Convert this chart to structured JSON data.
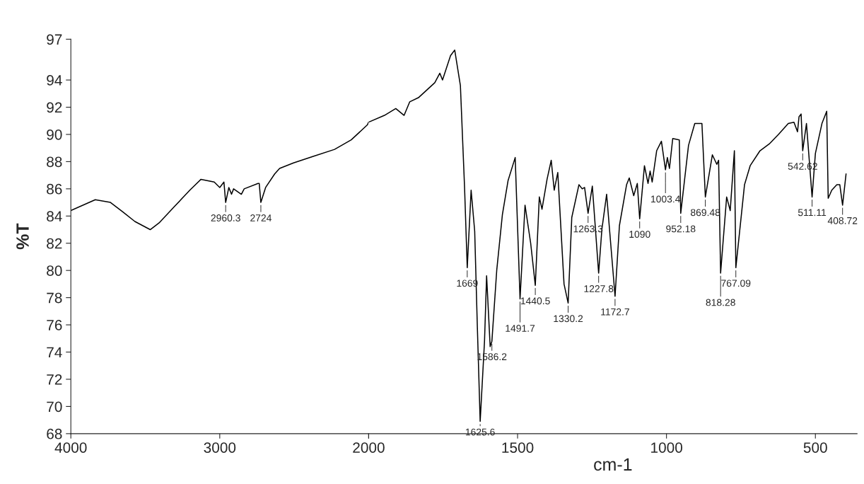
{
  "chart_data": [
    {
      "type": "line",
      "ylabel": "%T",
      "xlim": [
        4000,
        2000
      ],
      "xticks": [
        4000,
        3000,
        {
          "value": 2000,
          "label": null
        }
      ],
      "ylim": [
        68,
        97
      ],
      "yticks": [
        68,
        70,
        72,
        74,
        76,
        78,
        80,
        82,
        84,
        86,
        88,
        90,
        92,
        94,
        97
      ],
      "grid": false,
      "marker": "none",
      "line_style": "solid",
      "series": [
        {
          "color": "#000000",
          "x": [
            4000,
            3836,
            3734,
            3650,
            3570,
            3467,
            3407,
            3304,
            3201,
            3126,
            3037,
            3000,
            2972,
            2960.3,
            2939,
            2921,
            2907,
            2855,
            2836,
            2743,
            2735,
            2724,
            2692,
            2631,
            2598,
            2505,
            2369,
            2229,
            2117,
            2009,
            2000
          ],
          "values": [
            84.4,
            85.2,
            85.0,
            84.3,
            83.6,
            83.0,
            83.5,
            84.7,
            85.9,
            86.7,
            86.5,
            86.1,
            86.5,
            85.0,
            86.1,
            85.6,
            86.0,
            85.6,
            86.0,
            86.4,
            86.4,
            85.0,
            86.1,
            87.1,
            87.5,
            87.9,
            88.4,
            88.9,
            89.6,
            90.7,
            90.9
          ]
        }
      ],
      "annotations": [
        {
          "text": "2960.3",
          "x": 2960.3,
          "y": 85.0
        },
        {
          "text": "2724",
          "x": 2724,
          "y": 85.0
        }
      ]
    },
    {
      "type": "line",
      "xlabel": "cm-1",
      "tick_labels": "x",
      "xlim": [
        2000,
        360
      ],
      "xticks": [
        2000,
        1500,
        1000,
        500
      ],
      "ylim": [
        68,
        97
      ],
      "grid": false,
      "marker": "none",
      "line_style": "solid",
      "series": [
        {
          "color": "#000000",
          "x": [
            2000,
            1947,
            1909,
            1881,
            1862,
            1833,
            1778,
            1761,
            1752,
            1725,
            1711,
            1692,
            1678,
            1669,
            1656,
            1644,
            1635,
            1625.6,
            1611,
            1604,
            1592,
            1586.2,
            1570,
            1551,
            1532,
            1508,
            1491.7,
            1475,
            1456,
            1440.5,
            1427,
            1418,
            1401,
            1387,
            1377,
            1365,
            1344,
            1330.2,
            1318,
            1294,
            1283,
            1275,
            1263.3,
            1249,
            1227.8,
            1217,
            1201,
            1172.7,
            1158,
            1134,
            1125,
            1110,
            1098,
            1090,
            1074,
            1062,
            1055,
            1048,
            1033,
            1017,
            1003.4,
            997,
            990,
            979,
            957,
            952.18,
            926,
            905,
            881,
            869.48,
            846,
            831,
            825,
            818.28,
            798,
            786,
            772,
            767.09,
            738,
            719,
            686,
            655,
            624,
            591,
            572,
            560,
            555,
            548,
            542.62,
            530,
            511.11,
            500,
            478,
            462,
            457,
            445,
            428,
            418,
            408.72,
            397
          ],
          "values": [
            90.9,
            91.4,
            91.9,
            91.4,
            92.4,
            92.7,
            93.8,
            94.5,
            94.0,
            95.8,
            96.2,
            93.6,
            86.1,
            80.2,
            85.9,
            82.9,
            75.8,
            68.9,
            74.8,
            79.6,
            74.4,
            74.8,
            80.0,
            84.1,
            86.6,
            88.3,
            77.9,
            84.8,
            82.0,
            78.9,
            85.4,
            84.5,
            86.7,
            88.1,
            85.9,
            87.2,
            79.0,
            77.6,
            83.9,
            86.3,
            86.0,
            86.1,
            84.2,
            86.2,
            79.8,
            83.0,
            85.6,
            78.1,
            83.3,
            86.3,
            86.8,
            85.5,
            86.4,
            83.8,
            87.7,
            86.4,
            87.3,
            86.5,
            88.8,
            89.5,
            87.4,
            88.3,
            87.5,
            89.7,
            89.6,
            84.2,
            89.2,
            90.8,
            90.8,
            85.4,
            88.5,
            87.8,
            88.1,
            79.8,
            85.4,
            84.4,
            88.8,
            80.2,
            86.3,
            87.7,
            88.8,
            89.3,
            90.0,
            90.8,
            90.9,
            90.2,
            91.3,
            91.5,
            88.8,
            90.8,
            85.4,
            88.6,
            90.8,
            91.7,
            85.3,
            85.9,
            86.3,
            86.3,
            84.8,
            87.1
          ]
        }
      ],
      "annotations": [
        {
          "text": "1669",
          "x": 1669,
          "y": 80.2
        },
        {
          "text": "1625.6",
          "x": 1625.6,
          "y": 68.9
        },
        {
          "text": "1586.2",
          "x": 1586.2,
          "y": 74.8
        },
        {
          "text": "1491.7",
          "x": 1491.7,
          "y": 77.9
        },
        {
          "text": "1440.5",
          "x": 1440.5,
          "y": 78.9
        },
        {
          "text": "1330.2",
          "x": 1330.2,
          "y": 77.6
        },
        {
          "text": "1263.3",
          "x": 1263.3,
          "y": 84.2
        },
        {
          "text": "1227.8",
          "x": 1227.8,
          "y": 79.8
        },
        {
          "text": "1172.7",
          "x": 1172.7,
          "y": 78.1
        },
        {
          "text": "1090",
          "x": 1090,
          "y": 83.8
        },
        {
          "text": "1003.4",
          "x": 1003.4,
          "y": 87.4
        },
        {
          "text": "952.18",
          "x": 952.18,
          "y": 84.2
        },
        {
          "text": "869.48",
          "x": 869.48,
          "y": 85.4
        },
        {
          "text": "818.28",
          "x": 818.28,
          "y": 79.8
        },
        {
          "text": "767.09",
          "x": 767.09,
          "y": 80.2
        },
        {
          "text": "542.62",
          "x": 542.62,
          "y": 88.8
        },
        {
          "text": "511.11",
          "x": 511.11,
          "y": 85.4
        },
        {
          "text": "408.72",
          "x": 408.72,
          "y": 84.8
        }
      ]
    }
  ]
}
